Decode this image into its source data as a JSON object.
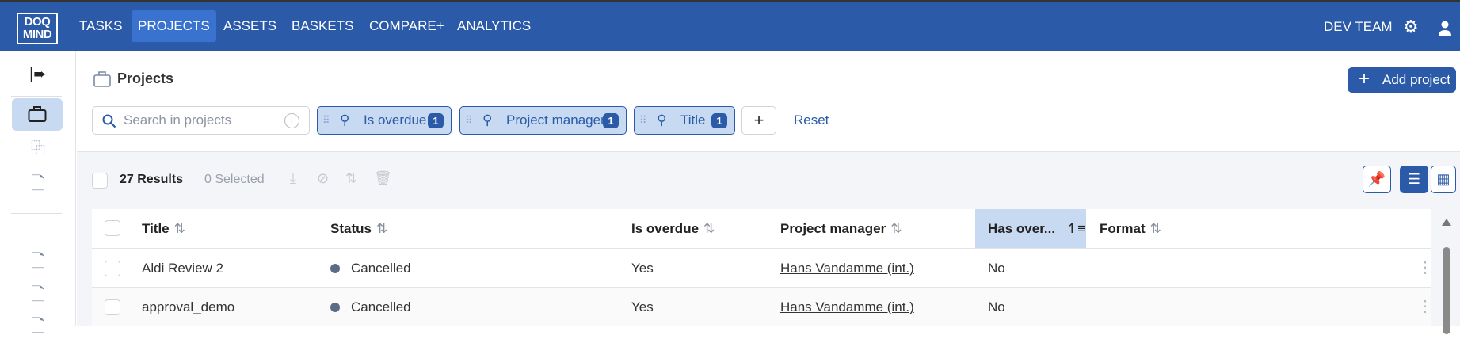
{
  "header": {
    "logo": "DOQ MIND",
    "nav": [
      {
        "label": "TASKS"
      },
      {
        "label": "PROJECTS",
        "active": true
      },
      {
        "label": "ASSETS"
      },
      {
        "label": "BASKETS"
      },
      {
        "label": "COMPARE+"
      },
      {
        "label": "ANALYTICS"
      }
    ],
    "team": "DEV TEAM",
    "icons": [
      "gear-icon",
      "user-icon"
    ]
  },
  "page": {
    "title": "Projects",
    "add_button": "Add project"
  },
  "filters": {
    "search_placeholder": "Search in projects",
    "chips": [
      {
        "label": "Is overdue",
        "count": "1"
      },
      {
        "label": "Project manager",
        "count": "1"
      },
      {
        "label": "Title",
        "count": "1"
      }
    ],
    "reset": "Reset"
  },
  "toolbar": {
    "results": "27 Results",
    "selected": "0 Selected"
  },
  "table": {
    "columns": [
      "Title",
      "Status",
      "Is overdue",
      "Project manager",
      "Has over...",
      "Format"
    ],
    "rows": [
      {
        "title": "Aldi Review 2",
        "status": "Cancelled",
        "is_overdue": "Yes",
        "project_manager": "Hans Vandamme (int.)",
        "has_overdue": "No",
        "format": ""
      },
      {
        "title": "approval_demo",
        "status": "Cancelled",
        "is_overdue": "Yes",
        "project_manager": "Hans Vandamme (int.)",
        "has_overdue": "No",
        "format": ""
      }
    ]
  },
  "colors": {
    "brand": "#2a5aa8",
    "chip_bg": "#c8daf2",
    "status_cancelled": "#5d6c85"
  }
}
